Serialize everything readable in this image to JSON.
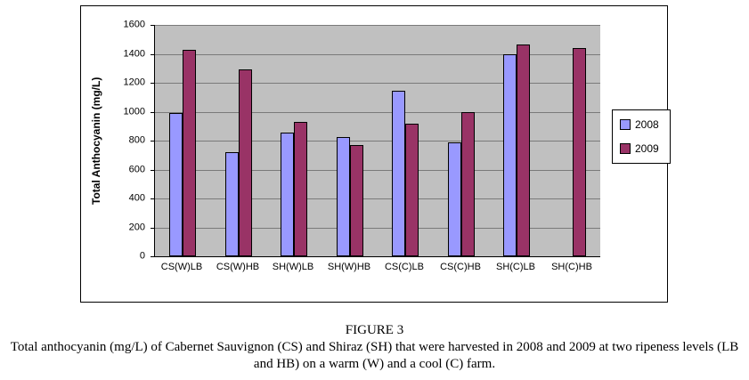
{
  "chart_data": {
    "type": "bar",
    "title": "",
    "categories": [
      "CS(W)LB",
      "CS(W)HB",
      "SH(W)LB",
      "SH(W)HB",
      "CS(C)LB",
      "CS(C)HB",
      "SH(C)LB",
      "SH(C)HB"
    ],
    "series": [
      {
        "name": "2008",
        "color": "#9999FF",
        "values": [
          990,
          720,
          855,
          825,
          1145,
          785,
          1395,
          null
        ]
      },
      {
        "name": "2009",
        "color": "#993366",
        "values": [
          1430,
          1290,
          930,
          770,
          915,
          995,
          1465,
          1440
        ]
      }
    ],
    "xlabel": "",
    "ylabel": "Total Anthocyanin (mg/L)",
    "ylim": [
      0,
      1600
    ],
    "ytick_step": 200,
    "grid": true,
    "legend_position": "right",
    "plot_background": "#c0c0c0"
  },
  "caption": {
    "figure_label": "FIGURE 3",
    "text": "Total anthocyanin (mg/L) of Cabernet Sauvignon (CS) and Shiraz (SH) that were harvested in 2008 and 2009 at two ripeness levels (LB and HB) on a warm (W) and a cool (C) farm."
  }
}
